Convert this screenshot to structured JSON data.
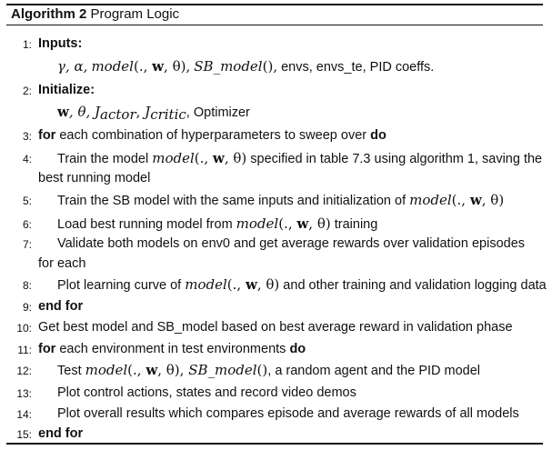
{
  "algorithm": {
    "label": "Algorithm 2",
    "title": "Program Logic"
  },
  "lines": {
    "l1": {
      "num": "1:",
      "keyword": "Inputs:"
    },
    "l1b": {
      "greek": "γ, α,",
      "fn1": "model",
      "args1": "(., ",
      "w": "w",
      "args1b": ", θ),",
      "fn2": "SB_model",
      "args2": "(),",
      "rest": " envs, envs_te, PID coeffs."
    },
    "l2": {
      "num": "2:",
      "keyword": "Initialize:"
    },
    "l2b": {
      "w": "w",
      "theta": ", θ, ",
      "j": "J",
      "actor": "actor",
      "j2": "J",
      "critic": "critic",
      "rest": ", Optimizer"
    },
    "l3": {
      "num": "3:",
      "kw1": "for",
      "text": " each combination of hyperparameters to sweep over ",
      "kw2": "do"
    },
    "l4": {
      "num": "4:",
      "pre": "Train the model ",
      "fn": "model",
      "args": "(., ",
      "w": "w",
      "argsb": ", θ)",
      "post": " specified in table 7.3 using algorithm 1, saving the"
    },
    "l4b": {
      "text": "best running model"
    },
    "l5": {
      "num": "5:",
      "pre": "Train the SB model with the same inputs and initialization of ",
      "fn": "model",
      "args": "(., ",
      "w": "w",
      "argsb": ", θ)"
    },
    "l6": {
      "num": "6:",
      "pre": "Load best running model from ",
      "fn": "model",
      "args": "(., ",
      "w": "w",
      "argsb": ", θ)",
      "post": " training"
    },
    "l7": {
      "num": "7:",
      "text": "Validate both models on env0 and get average rewards over validation episodes"
    },
    "l7b": {
      "text": "for each"
    },
    "l8": {
      "num": "8:",
      "pre": "Plot learning curve of ",
      "fn": "model",
      "args": "(., ",
      "w": "w",
      "argsb": ", θ)",
      "post": " and other training and validation logging data"
    },
    "l9": {
      "num": "9:",
      "kw": "end for"
    },
    "l10": {
      "num": "10:",
      "text": "Get best model and SB_model based on best average reward in validation phase"
    },
    "l11": {
      "num": "11:",
      "kw1": "for",
      "text": " each environment in test environments ",
      "kw2": "do"
    },
    "l12": {
      "num": "12:",
      "pre": "Test ",
      "fn": "model",
      "args": "(., ",
      "w": "w",
      "argsb": ", θ), ",
      "fn2": "SB_model",
      "args2": "()",
      "post": ", a random agent and the PID model"
    },
    "l13": {
      "num": "13:",
      "text": "Plot control actions, states and record video demos"
    },
    "l14": {
      "num": "14:",
      "text": "Plot overall results which compares episode and average rewards of all models"
    },
    "l15": {
      "num": "15:",
      "kw": "end for"
    }
  }
}
